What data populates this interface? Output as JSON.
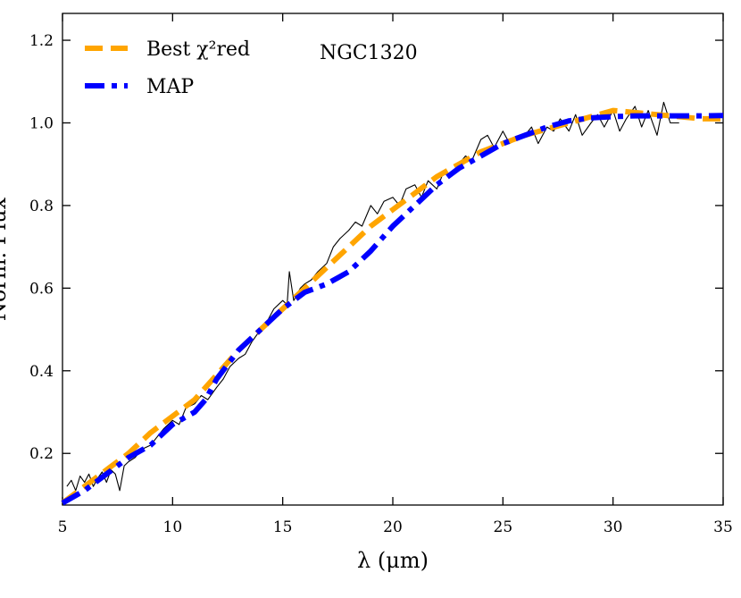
{
  "chart_data": {
    "type": "line",
    "title": "",
    "annotation": "NGC1320",
    "xlabel": "λ (μm)",
    "ylabel": "Norm. Flux",
    "xlim": [
      5,
      35
    ],
    "ylim": [
      0.075,
      1.265
    ],
    "xticks": [
      5,
      10,
      15,
      20,
      25,
      30,
      35
    ],
    "yticks": [
      0.2,
      0.4,
      0.6,
      0.8,
      1.0,
      1.2
    ],
    "xtick_labels": [
      "5",
      "10",
      "15",
      "20",
      "25",
      "30",
      "35"
    ],
    "ytick_labels": [
      "0.2",
      "0.4",
      "0.6",
      "0.8",
      "1.0",
      "1.2"
    ],
    "legend_position": "top-left",
    "grid": false,
    "series": [
      {
        "name": "",
        "kind": "observed-spectrum",
        "color": "#000000",
        "style": "solid-thin",
        "x": [
          5.2,
          5.4,
          5.6,
          5.8,
          6.0,
          6.2,
          6.4,
          6.6,
          6.8,
          7.0,
          7.2,
          7.4,
          7.6,
          7.8,
          8.0,
          8.3,
          8.6,
          9.0,
          9.3,
          9.6,
          10.0,
          10.3,
          10.6,
          11.0,
          11.3,
          11.6,
          12.0,
          12.3,
          12.6,
          13.0,
          13.3,
          13.6,
          14.0,
          14.3,
          14.6,
          15.0,
          15.2,
          15.3,
          15.5,
          15.8,
          16.0,
          16.3,
          16.6,
          17.0,
          17.3,
          17.6,
          18.0,
          18.3,
          18.6,
          19.0,
          19.3,
          19.6,
          20.0,
          20.3,
          20.6,
          21.0,
          21.3,
          21.6,
          22.0,
          22.3,
          22.6,
          23.0,
          23.3,
          23.6,
          24.0,
          24.3,
          24.6,
          25.0,
          25.3,
          25.6,
          26.0,
          26.3,
          26.6,
          27.0,
          27.3,
          27.6,
          28.0,
          28.3,
          28.6,
          29.0,
          29.3,
          29.6,
          30.0,
          30.3,
          30.6,
          31.0,
          31.3,
          31.6,
          32.0,
          32.3,
          32.6,
          33.0
        ],
        "values": [
          0.12,
          0.135,
          0.11,
          0.145,
          0.13,
          0.15,
          0.12,
          0.14,
          0.155,
          0.13,
          0.16,
          0.15,
          0.11,
          0.17,
          0.18,
          0.19,
          0.21,
          0.22,
          0.24,
          0.26,
          0.28,
          0.27,
          0.31,
          0.32,
          0.34,
          0.33,
          0.36,
          0.38,
          0.41,
          0.43,
          0.44,
          0.47,
          0.5,
          0.52,
          0.55,
          0.57,
          0.56,
          0.64,
          0.57,
          0.6,
          0.61,
          0.62,
          0.64,
          0.66,
          0.7,
          0.72,
          0.74,
          0.76,
          0.75,
          0.8,
          0.78,
          0.81,
          0.82,
          0.8,
          0.84,
          0.85,
          0.82,
          0.86,
          0.84,
          0.88,
          0.87,
          0.9,
          0.92,
          0.91,
          0.96,
          0.97,
          0.94,
          0.98,
          0.95,
          0.96,
          0.97,
          0.99,
          0.95,
          0.99,
          0.98,
          1.01,
          0.98,
          1.02,
          0.97,
          1.0,
          1.02,
          0.99,
          1.03,
          0.98,
          1.01,
          1.04,
          0.99,
          1.03,
          0.97,
          1.05,
          1.0,
          1.0
        ]
      },
      {
        "name": "Best χ²red",
        "color": "#FFA500",
        "style": "dashed",
        "x": [
          5,
          6,
          7,
          8,
          9,
          10,
          11,
          12,
          13,
          14,
          15,
          16,
          17,
          18,
          19,
          20,
          21,
          22,
          23,
          24,
          25,
          26,
          27,
          28,
          29,
          30,
          31,
          32,
          33,
          34,
          35
        ],
        "values": [
          0.08,
          0.12,
          0.16,
          0.2,
          0.25,
          0.29,
          0.33,
          0.39,
          0.45,
          0.5,
          0.55,
          0.6,
          0.65,
          0.7,
          0.75,
          0.79,
          0.83,
          0.87,
          0.9,
          0.93,
          0.95,
          0.97,
          0.985,
          1.0,
          1.015,
          1.03,
          1.025,
          1.02,
          1.015,
          1.01,
          1.01
        ]
      },
      {
        "name": "MAP",
        "color": "#0000FF",
        "style": "dashdot",
        "x": [
          5,
          6,
          7,
          8,
          9,
          10,
          11,
          11.5,
          12,
          13,
          14,
          15,
          16,
          17,
          18,
          19,
          20,
          21,
          22,
          23,
          24,
          25,
          26,
          27,
          28,
          29,
          30,
          31,
          32,
          33,
          34,
          35
        ],
        "values": [
          0.08,
          0.11,
          0.15,
          0.19,
          0.22,
          0.27,
          0.3,
          0.33,
          0.38,
          0.45,
          0.5,
          0.55,
          0.59,
          0.61,
          0.64,
          0.69,
          0.75,
          0.8,
          0.85,
          0.89,
          0.92,
          0.95,
          0.97,
          0.99,
          1.005,
          1.012,
          1.015,
          1.017,
          1.017,
          1.017,
          1.017,
          1.018
        ]
      }
    ]
  }
}
